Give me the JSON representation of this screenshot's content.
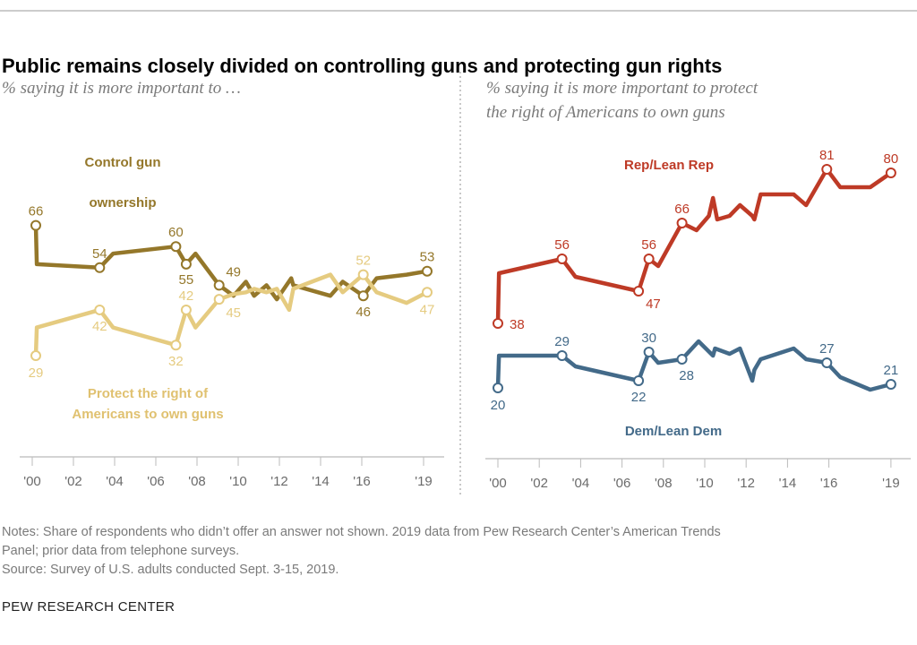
{
  "title": "Public remains closely divided on controlling guns and protecting gun rights",
  "notes": [
    "Notes: Share of respondents who didn’t offer an answer not shown. 2019 data from Pew Research Center’s American Trends",
    "Panel; prior data from telephone surveys.",
    "Source: Survey of U.S. adults conducted Sept. 3-15, 2019."
  ],
  "brand": "PEW RESEARCH CENTER",
  "chart_data": [
    {
      "type": "line",
      "subtitle": [
        "% saying it is more important to …"
      ],
      "xlim": [
        2000,
        2020
      ],
      "ylim": [
        0,
        100
      ],
      "x_ticks": [
        "'00",
        "'02",
        "'04",
        "'06",
        "'08",
        "'10",
        "'12",
        "'14",
        "'16",
        "'19"
      ],
      "x_tick_values": [
        2000,
        2002,
        2004,
        2006,
        2008,
        2010,
        2012,
        2014,
        2016,
        2019
      ],
      "grid": false,
      "series": [
        {
          "name": "Control gun ownership",
          "name_lines": [
            "Control gun",
            "ownership"
          ],
          "color": "#94772a",
          "x": [
            2000.0,
            2000.05,
            2003.1,
            2003.75,
            2006.8,
            2007.3,
            2007.75,
            2008.9,
            2009.6,
            2010.2,
            2010.6,
            2011.2,
            2011.7,
            2012.4,
            2012.5,
            2014.3,
            2014.9,
            2015.9,
            2016.55,
            2018.0,
            2019.0
          ],
          "y": [
            66,
            55,
            54,
            58,
            60,
            55,
            58,
            49,
            46,
            50,
            46,
            49,
            45,
            51,
            49,
            46,
            50,
            46,
            51,
            52,
            53
          ],
          "labels": [
            {
              "index": 0,
              "text": "66"
            },
            {
              "index": 2,
              "text": "54"
            },
            {
              "index": 4,
              "text": "60"
            },
            {
              "index": 5,
              "text": "55"
            },
            {
              "index": 7,
              "text": "49"
            },
            {
              "index": 17,
              "text": "46"
            },
            {
              "index": 20,
              "text": "53"
            }
          ]
        },
        {
          "name": "Protect the right of Americans to own guns",
          "name_lines": [
            "Protect the right of",
            "Americans to own guns"
          ],
          "color": "#e5cb80",
          "x": [
            2000.0,
            2000.05,
            2003.1,
            2003.75,
            2006.8,
            2007.3,
            2007.75,
            2008.9,
            2009.6,
            2010.2,
            2010.6,
            2011.2,
            2011.7,
            2012.3,
            2012.5,
            2014.3,
            2014.9,
            2015.9,
            2016.55,
            2018.0,
            2019.0
          ],
          "y": [
            29,
            37,
            42,
            37,
            32,
            42,
            37,
            45,
            46.5,
            47,
            48,
            47,
            48,
            42,
            48,
            52,
            47,
            52,
            47,
            44,
            47
          ],
          "labels": [
            {
              "index": 0,
              "text": "29"
            },
            {
              "index": 2,
              "text": "42"
            },
            {
              "index": 4,
              "text": "32"
            },
            {
              "index": 5,
              "text": "42"
            },
            {
              "index": 7,
              "text": "45"
            },
            {
              "index": 17,
              "text": "52"
            },
            {
              "index": 20,
              "text": "47"
            }
          ]
        }
      ]
    },
    {
      "type": "line",
      "subtitle": [
        "% saying it is more important to protect",
        "the right of Americans to own guns"
      ],
      "xlim": [
        2000,
        2020
      ],
      "ylim": [
        0,
        100
      ],
      "x_ticks": [
        "'00",
        "'02",
        "'04",
        "'06",
        "'08",
        "'10",
        "'12",
        "'14",
        "'16",
        "'19"
      ],
      "x_tick_values": [
        2000,
        2002,
        2004,
        2006,
        2008,
        2010,
        2012,
        2014,
        2016,
        2019
      ],
      "grid": false,
      "series": [
        {
          "name": "Rep/Lean Rep",
          "name_lines": [
            "Rep/Lean Rep"
          ],
          "color": "#be3a26",
          "x": [
            2000.0,
            2000.05,
            2003.1,
            2003.75,
            2006.8,
            2007.3,
            2007.75,
            2008.9,
            2009.6,
            2010.2,
            2010.4,
            2010.6,
            2011.2,
            2011.7,
            2012.3,
            2012.4,
            2012.7,
            2014.3,
            2014.9,
            2015.9,
            2016.55,
            2018.0,
            2019.0
          ],
          "y": [
            38,
            52,
            56,
            51,
            47,
            56,
            54,
            66,
            64,
            68,
            73,
            67,
            68,
            71,
            68,
            67,
            74,
            74,
            71,
            81,
            76,
            76,
            80
          ],
          "labels": [
            {
              "index": 0,
              "text": "38"
            },
            {
              "index": 2,
              "text": "56"
            },
            {
              "index": 4,
              "text": "47"
            },
            {
              "index": 5,
              "text": "56"
            },
            {
              "index": 7,
              "text": "66"
            },
            {
              "index": 19,
              "text": "81"
            },
            {
              "index": 22,
              "text": "80"
            }
          ]
        },
        {
          "name": "Dem/Lean Dem",
          "name_lines": [
            "Dem/Lean Dem"
          ],
          "color": "#436a89",
          "x": [
            2000.0,
            2000.05,
            2003.1,
            2003.75,
            2006.8,
            2007.3,
            2007.75,
            2008.9,
            2009.7,
            2010.4,
            2010.5,
            2011.2,
            2011.7,
            2012.3,
            2012.4,
            2012.7,
            2014.3,
            2014.9,
            2015.9,
            2016.55,
            2018.0,
            2019.0
          ],
          "y": [
            20,
            29,
            29,
            26,
            22,
            30,
            27,
            28,
            33,
            29,
            31,
            29.5,
            31,
            22,
            25,
            28,
            31,
            28,
            27,
            23,
            19.5,
            21
          ],
          "labels": [
            {
              "index": 0,
              "text": "20"
            },
            {
              "index": 2,
              "text": "29"
            },
            {
              "index": 4,
              "text": "22"
            },
            {
              "index": 5,
              "text": "30"
            },
            {
              "index": 7,
              "text": "28"
            },
            {
              "index": 18,
              "text": "27"
            },
            {
              "index": 21,
              "text": "21"
            }
          ]
        }
      ]
    }
  ]
}
